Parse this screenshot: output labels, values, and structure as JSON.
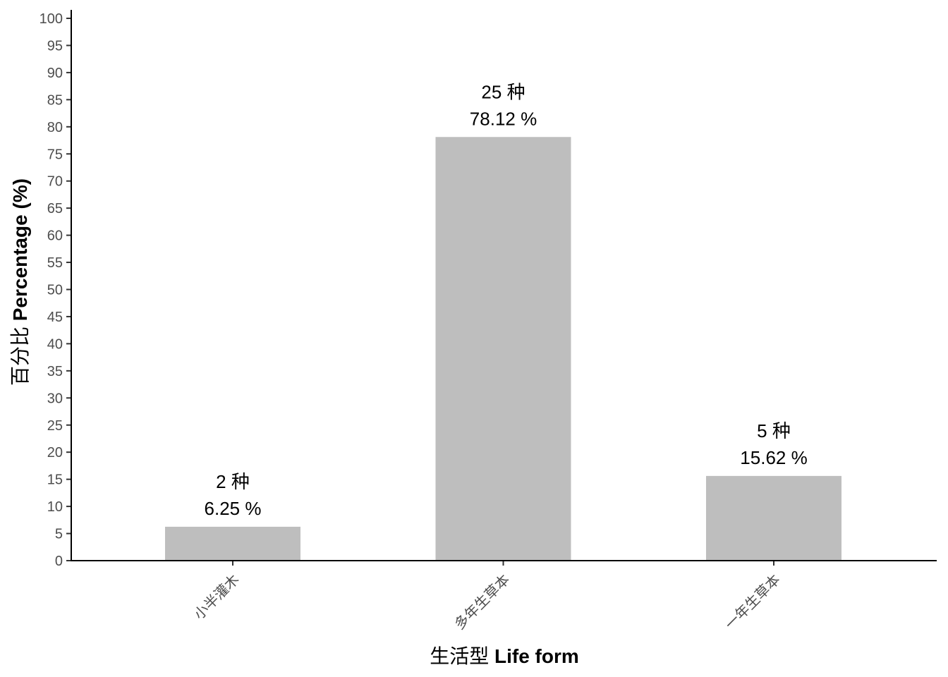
{
  "chart_data": {
    "type": "bar",
    "categories": [
      "小半灌木",
      "多年生草本",
      "一年生草本"
    ],
    "values": [
      6.25,
      78.12,
      15.62
    ],
    "counts": [
      2,
      25,
      5
    ],
    "count_labels": [
      "2 种",
      "25 种",
      "5 种"
    ],
    "percent_labels": [
      "6.25 %",
      "78.12 %",
      "15.62 %"
    ],
    "xlabel_zh": "生活型",
    "xlabel_en": "Life form",
    "ylabel_zh": "百分比",
    "ylabel_en": "Percentage (%)",
    "ylim": [
      0,
      100
    ],
    "yticks": [
      0,
      5,
      10,
      15,
      20,
      25,
      30,
      35,
      40,
      45,
      50,
      55,
      60,
      65,
      70,
      75,
      80,
      85,
      90,
      95,
      100
    ],
    "grid": false,
    "legend": "none",
    "bar_color": "#bebebe",
    "axis_color": "#000000",
    "tick_label_color": "#4d4d4d"
  }
}
